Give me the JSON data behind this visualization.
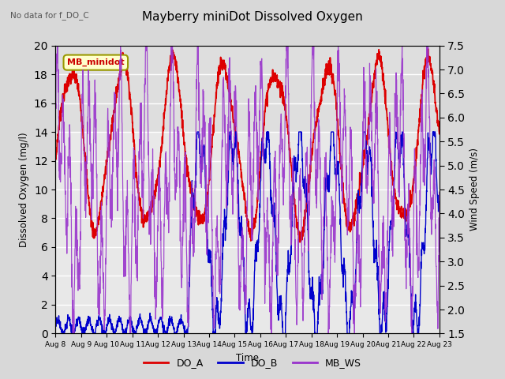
{
  "title": "Mayberry miniDot Dissolved Oxygen",
  "subtitle": "No data for f_DO_C",
  "xlabel": "Time",
  "ylabel_left": "Dissolved Oxygen (mg/l)",
  "ylabel_right": "Wind Speed (m/s)",
  "box_label": "MB_minidot",
  "legend": [
    "DO_A",
    "DO_B",
    "MB_WS"
  ],
  "colors": {
    "DO_A": "#dd0000",
    "DO_B": "#0000cc",
    "MB_WS": "#9933cc"
  },
  "ylim_left": [
    0,
    20
  ],
  "ylim_right": [
    1.5,
    7.5
  ],
  "xtick_labels": [
    "Aug 8",
    "Aug 9",
    "Aug 10",
    "Aug 11",
    "Aug 12",
    "Aug 13",
    "Aug 14",
    "Aug 15",
    "Aug 16",
    "Aug 17",
    "Aug 18",
    "Aug 19",
    "Aug 20",
    "Aug 21",
    "Aug 22",
    "Aug 23"
  ],
  "yticks_left": [
    0,
    2,
    4,
    6,
    8,
    10,
    12,
    14,
    16,
    18,
    20
  ],
  "yticks_right": [
    1.5,
    2.0,
    2.5,
    3.0,
    3.5,
    4.0,
    4.5,
    5.0,
    5.5,
    6.0,
    6.5,
    7.0,
    7.5
  ],
  "bg_color": "#d8d8d8",
  "plot_bg_color": "#e8e8e8",
  "grid_color": "#ffffff"
}
